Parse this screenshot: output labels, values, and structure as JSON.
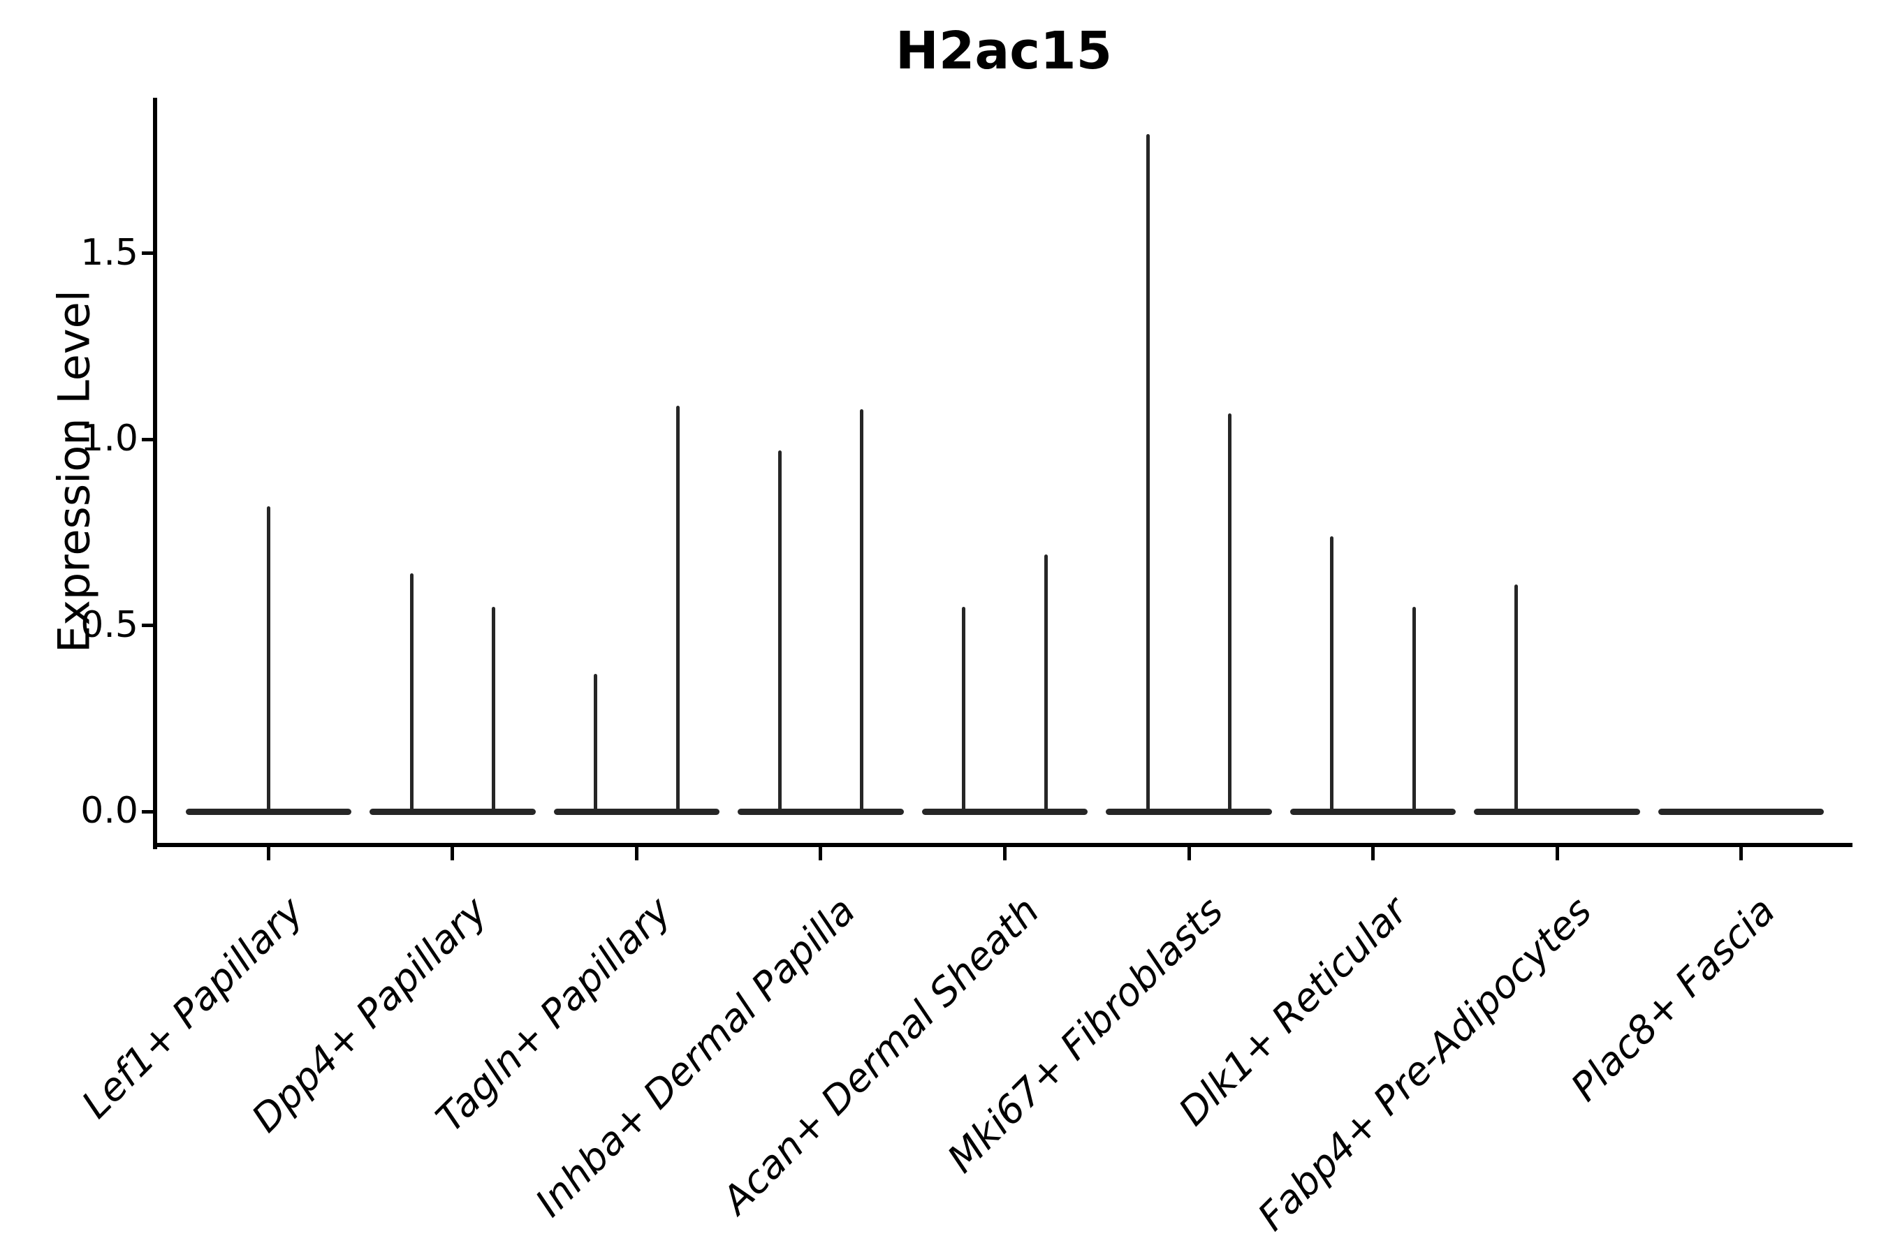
{
  "title": "H2ac15",
  "y_axis": {
    "label": "Expression Level",
    "tick_labels": [
      "0.0",
      "0.5",
      "1.0",
      "1.5"
    ]
  },
  "x_axis": {
    "tick_labels": [
      "Lef1+ Papillary",
      "Dpp4+ Papillary",
      "Tagln+ Papillary",
      "Inhba+ Dermal Papilla",
      "Acan+ Dermal Sheath",
      "Mki67+ Fibroblasts",
      "Dlk1+ Reticular",
      "Fabp4+ Pre-Adipocytes",
      "Plac8+ Fascia"
    ]
  },
  "colors": {
    "background": "#ffffff",
    "axis": "#000000",
    "text": "#000000",
    "violin": "#262626"
  },
  "chart_data": {
    "type": "violin",
    "title": "H2ac15",
    "xlabel": "",
    "ylabel": "Expression Level",
    "ylim": [
      -0.09,
      1.9175
    ],
    "yticks": [
      0.0,
      0.5,
      1.0,
      1.5
    ],
    "ytick_labels": [
      "0.0",
      "0.5",
      "1.0",
      "1.5"
    ],
    "categories": [
      "Lef1+ Papillary",
      "Dpp4+ Papillary",
      "Tagln+ Papillary",
      "Inhba+ Dermal Papilla",
      "Acan+ Dermal Sheath",
      "Mki67+ Fibroblasts",
      "Dlk1+ Reticular",
      "Fabp4+ Pre-Adipocytes",
      "Plac8+ Fascia"
    ],
    "legend": "none",
    "grid": false,
    "body_width_units": 0.9,
    "note": "Needle-shaped violins: nearly all cells at 0 expression (horizontal body at y=0), thin spikes reach the maximum expression value; two dodged sub-violins per category at offsets ±0.2225, single centered violin for Lef1+ Papillary",
    "violins": [
      {
        "category": "Lef1+ Papillary",
        "spikes": [
          {
            "offset": 0.0,
            "max": 0.82
          }
        ]
      },
      {
        "category": "Dpp4+ Papillary",
        "spikes": [
          {
            "offset": -0.2225,
            "max": 0.64
          },
          {
            "offset": 0.2225,
            "max": 0.55
          }
        ]
      },
      {
        "category": "Tagln+ Papillary",
        "spikes": [
          {
            "offset": -0.2225,
            "max": 0.37
          },
          {
            "offset": 0.2225,
            "max": 1.09
          }
        ]
      },
      {
        "category": "Inhba+ Dermal Papilla",
        "spikes": [
          {
            "offset": -0.2225,
            "max": 0.97
          },
          {
            "offset": 0.2225,
            "max": 1.08
          }
        ]
      },
      {
        "category": "Acan+ Dermal Sheath",
        "spikes": [
          {
            "offset": -0.2225,
            "max": 0.55
          },
          {
            "offset": 0.2225,
            "max": 0.69
          }
        ]
      },
      {
        "category": "Mki67+ Fibroblasts",
        "spikes": [
          {
            "offset": -0.2225,
            "max": 1.82
          },
          {
            "offset": 0.2225,
            "max": 1.07
          }
        ]
      },
      {
        "category": "Dlk1+ Reticular",
        "spikes": [
          {
            "offset": -0.2225,
            "max": 0.74
          },
          {
            "offset": 0.2225,
            "max": 0.55
          }
        ]
      },
      {
        "category": "Fabp4+ Pre-Adipocytes",
        "spikes": [
          {
            "offset": -0.2225,
            "max": 0.61
          }
        ]
      },
      {
        "category": "Plac8+ Fascia",
        "spikes": []
      }
    ]
  }
}
